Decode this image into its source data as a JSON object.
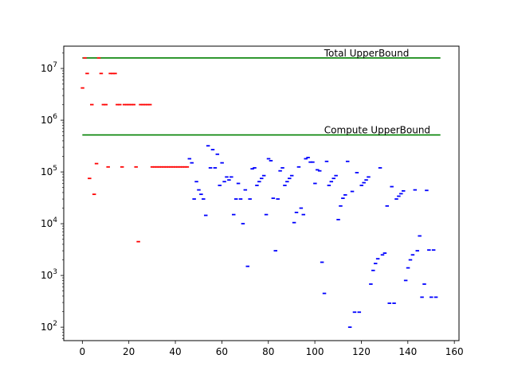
{
  "chart_data": {
    "type": "scatter",
    "yscale": "log",
    "xlim": [
      -8,
      162
    ],
    "ylim": [
      55,
      27000000
    ],
    "x_ticks": [
      0,
      20,
      40,
      60,
      80,
      100,
      120,
      140,
      160
    ],
    "y_ticks": [
      100,
      1000,
      10000,
      100000,
      1000000,
      10000000
    ],
    "y_tick_labels": [
      {
        "base": "10",
        "exp": "2"
      },
      {
        "base": "10",
        "exp": "3"
      },
      {
        "base": "10",
        "exp": "4"
      },
      {
        "base": "10",
        "exp": "5"
      },
      {
        "base": "10",
        "exp": "6"
      },
      {
        "base": "10",
        "exp": "7"
      }
    ],
    "grid": false,
    "lines": [
      {
        "label": "Total UpperBound",
        "y": 16000000,
        "x": [
          0,
          154
        ],
        "color": "#008000"
      },
      {
        "label": "Compute UpperBound",
        "y": 520000,
        "x": [
          0,
          154
        ],
        "color": "#008000"
      }
    ],
    "series": [
      {
        "color": "#ff0000",
        "points": [
          [
            0,
            4200000
          ],
          [
            1,
            16000000
          ],
          [
            2,
            8000000
          ],
          [
            3,
            75000
          ],
          [
            4,
            2000000
          ],
          [
            5,
            37000
          ],
          [
            6,
            145000
          ],
          [
            7,
            16000000
          ],
          [
            8,
            8000000
          ],
          [
            9,
            2000000
          ],
          [
            10,
            2000000
          ],
          [
            11,
            125000
          ],
          [
            12,
            8000000
          ],
          [
            13,
            8000000
          ],
          [
            14,
            8000000
          ],
          [
            15,
            2000000
          ],
          [
            16,
            2000000
          ],
          [
            17,
            125000
          ],
          [
            18,
            2000000
          ],
          [
            19,
            2000000
          ],
          [
            20,
            2000000
          ],
          [
            21,
            2000000
          ],
          [
            22,
            2000000
          ],
          [
            23,
            125000
          ],
          [
            24,
            4500
          ],
          [
            25,
            2000000
          ],
          [
            26,
            2000000
          ],
          [
            27,
            2000000
          ],
          [
            28,
            2000000
          ],
          [
            29,
            2000000
          ],
          [
            30,
            125000
          ],
          [
            31,
            125000
          ],
          [
            32,
            125000
          ],
          [
            33,
            125000
          ],
          [
            34,
            125000
          ],
          [
            35,
            125000
          ],
          [
            36,
            125000
          ],
          [
            37,
            125000
          ],
          [
            38,
            125000
          ],
          [
            39,
            125000
          ],
          [
            40,
            125000
          ],
          [
            41,
            125000
          ],
          [
            42,
            125000
          ],
          [
            43,
            125000
          ],
          [
            44,
            125000
          ],
          [
            45,
            125000
          ]
        ]
      },
      {
        "color": "#0000ff",
        "points": [
          [
            46,
            180000
          ],
          [
            47,
            150000
          ],
          [
            48,
            30000
          ],
          [
            49,
            65000
          ],
          [
            50,
            45000
          ],
          [
            51,
            37000
          ],
          [
            52,
            30000
          ],
          [
            53,
            14500
          ],
          [
            54,
            320000
          ],
          [
            55,
            120000
          ],
          [
            56,
            270000
          ],
          [
            57,
            120000
          ],
          [
            58,
            220000
          ],
          [
            59,
            55000
          ],
          [
            60,
            150000
          ],
          [
            61,
            65000
          ],
          [
            62,
            80000
          ],
          [
            63,
            70000
          ],
          [
            64,
            80000
          ],
          [
            65,
            15000
          ],
          [
            66,
            30000
          ],
          [
            67,
            60000
          ],
          [
            68,
            30000
          ],
          [
            69,
            10000
          ],
          [
            70,
            45000
          ],
          [
            71,
            1500
          ],
          [
            72,
            30000
          ],
          [
            73,
            115000
          ],
          [
            74,
            120000
          ],
          [
            75,
            55000
          ],
          [
            76,
            65000
          ],
          [
            77,
            75000
          ],
          [
            78,
            85000
          ],
          [
            79,
            15000
          ],
          [
            80,
            180000
          ],
          [
            81,
            165000
          ],
          [
            82,
            31000
          ],
          [
            83,
            3000
          ],
          [
            84,
            30000
          ],
          [
            85,
            105000
          ],
          [
            86,
            120000
          ],
          [
            87,
            55000
          ],
          [
            88,
            65000
          ],
          [
            89,
            75000
          ],
          [
            90,
            85000
          ],
          [
            91,
            10500
          ],
          [
            92,
            16500
          ],
          [
            93,
            125000
          ],
          [
            94,
            20000
          ],
          [
            95,
            15000
          ],
          [
            96,
            180000
          ],
          [
            97,
            190000
          ],
          [
            98,
            155000
          ],
          [
            99,
            155000
          ],
          [
            100,
            60000
          ],
          [
            101,
            110000
          ],
          [
            102,
            105000
          ],
          [
            103,
            1800
          ],
          [
            104,
            450
          ],
          [
            105,
            160000
          ],
          [
            106,
            55000
          ],
          [
            107,
            65000
          ],
          [
            108,
            75000
          ],
          [
            109,
            85000
          ],
          [
            110,
            12000
          ],
          [
            111,
            22000
          ],
          [
            112,
            31000
          ],
          [
            113,
            36000
          ],
          [
            114,
            160000
          ],
          [
            115,
            100
          ],
          [
            116,
            42000
          ],
          [
            117,
            195
          ],
          [
            118,
            97000
          ],
          [
            119,
            195
          ],
          [
            120,
            55000
          ],
          [
            121,
            62000
          ],
          [
            122,
            70000
          ],
          [
            123,
            80000
          ],
          [
            124,
            680
          ],
          [
            125,
            1250
          ],
          [
            126,
            1700
          ],
          [
            127,
            2100
          ],
          [
            128,
            120000
          ],
          [
            129,
            2500
          ],
          [
            130,
            2700
          ],
          [
            131,
            22000
          ],
          [
            132,
            290
          ],
          [
            133,
            52000
          ],
          [
            134,
            290
          ],
          [
            135,
            30000
          ],
          [
            136,
            34000
          ],
          [
            137,
            38000
          ],
          [
            138,
            43000
          ],
          [
            139,
            800
          ],
          [
            140,
            1400
          ],
          [
            141,
            2000
          ],
          [
            142,
            2500
          ],
          [
            143,
            45000
          ],
          [
            144,
            3000
          ],
          [
            145,
            5800
          ],
          [
            146,
            380
          ],
          [
            147,
            680
          ],
          [
            148,
            44000
          ],
          [
            149,
            3100
          ],
          [
            150,
            380
          ],
          [
            151,
            3100
          ],
          [
            152,
            380
          ]
        ]
      }
    ]
  }
}
